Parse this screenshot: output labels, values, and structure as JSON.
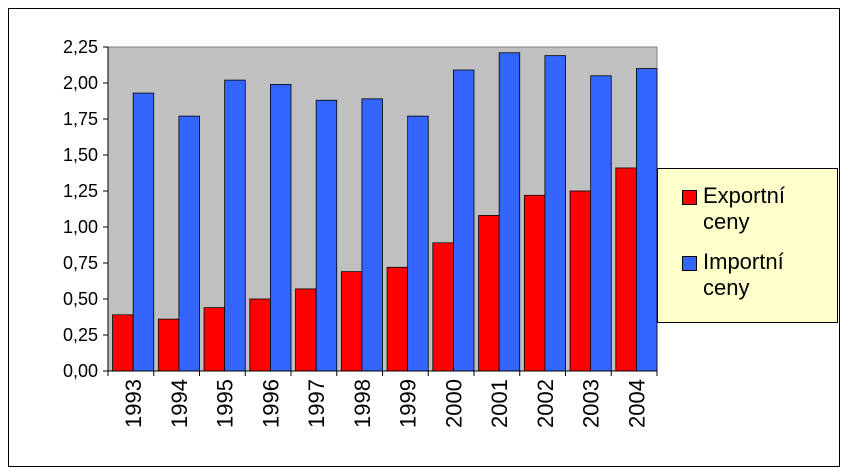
{
  "chart_data": {
    "type": "bar",
    "categories": [
      "1993",
      "1994",
      "1995",
      "1996",
      "1997",
      "1998",
      "1999",
      "2000",
      "2001",
      "2002",
      "2003",
      "2004"
    ],
    "series": [
      {
        "name": "Exportní ceny",
        "color": "#ff0000",
        "values": [
          0.39,
          0.36,
          0.44,
          0.5,
          0.57,
          0.69,
          0.72,
          0.89,
          1.08,
          1.22,
          1.25,
          1.41
        ]
      },
      {
        "name": "Importní ceny",
        "color": "#3366ff",
        "values": [
          1.93,
          1.77,
          2.02,
          1.99,
          1.88,
          1.89,
          1.77,
          2.09,
          2.21,
          2.19,
          2.05,
          2.1
        ]
      }
    ],
    "ylim": [
      0,
      2.25
    ],
    "yticks": [
      {
        "value": 0,
        "label": "0,00"
      },
      {
        "value": 0.25,
        "label": "0,25"
      },
      {
        "value": 0.5,
        "label": "0,50"
      },
      {
        "value": 0.75,
        "label": "0,75"
      },
      {
        "value": 1,
        "label": "1,00"
      },
      {
        "value": 1.25,
        "label": "1,25"
      },
      {
        "value": 1.5,
        "label": "1,50"
      },
      {
        "value": 1.75,
        "label": "1,75"
      },
      {
        "value": 2,
        "label": "2,00"
      },
      {
        "value": 2.25,
        "label": "2,25"
      }
    ],
    "grid": false,
    "legend": "right",
    "plot_background": "#c0c0c0"
  }
}
